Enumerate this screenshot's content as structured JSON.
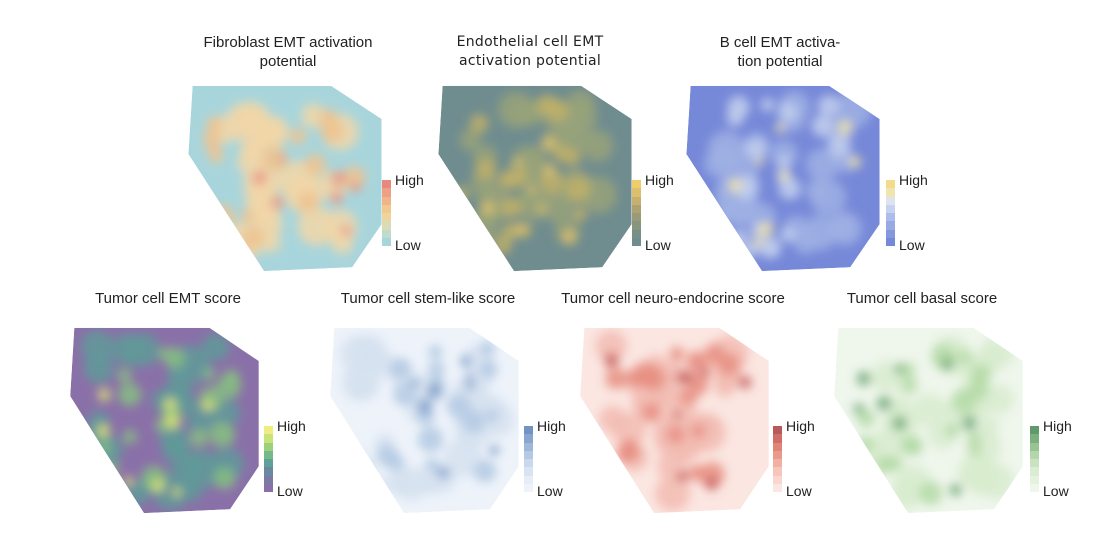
{
  "panels": [
    {
      "id": "fibroblast",
      "title": "Fibroblast EMT activation\npotential",
      "legend": {
        "high": "High",
        "low": "Low"
      },
      "colors": {
        "bg": "#a8d5dc",
        "spots": [
          "#f2d7a8",
          "#f0c38e",
          "#e89a8a"
        ],
        "ramp": [
          "#e8887f",
          "#ef9f86",
          "#f1b48a",
          "#f2c790",
          "#f0d49e",
          "#d9dcb5",
          "#bfdbc9",
          "#a8d5dc"
        ]
      }
    },
    {
      "id": "endothelial",
      "title": "Endothelial cell EMT\nactivation potential",
      "legend": {
        "high": "High",
        "low": "Low"
      },
      "colors": {
        "bg": "#6f8c8f",
        "spots": [
          "#98a27a",
          "#c1b069",
          "#e2c26c"
        ],
        "ramp": [
          "#f0cd6b",
          "#dcc06b",
          "#c6b06d",
          "#aea272",
          "#989a78",
          "#87947e",
          "#788f85",
          "#6f8c8f"
        ]
      }
    },
    {
      "id": "bcell",
      "title": "B cell EMT activa-\ntion potential",
      "legend": {
        "high": "High",
        "low": "Low"
      },
      "colors": {
        "bg": "#7688d8",
        "spots": [
          "#9fb0e4",
          "#c3d0ee",
          "#efe4a8"
        ],
        "ramp": [
          "#f2dc8a",
          "#f0e4b0",
          "#dde3ef",
          "#c6d2ef",
          "#adbcea",
          "#98a9e3",
          "#8597dd",
          "#7688d8"
        ]
      }
    },
    {
      "id": "tumor-emt",
      "title": "Tumor cell EMT score",
      "legend": {
        "high": "High",
        "low": "Low"
      },
      "colors": {
        "bg": "#8a70a8",
        "spots": [
          "#5f9a99",
          "#86c081",
          "#dde575"
        ],
        "ramp": [
          "#eeee80",
          "#c9e27a",
          "#9ed07c",
          "#73b98a",
          "#5fa196",
          "#6a889f",
          "#7b7aa5",
          "#8a70a8"
        ]
      }
    },
    {
      "id": "tumor-stem",
      "title": "Tumor cell stem-like score",
      "legend": {
        "high": "High",
        "low": "Low"
      },
      "colors": {
        "bg": "#eef3fa",
        "spots": [
          "#d6e2f0",
          "#b3c9e3",
          "#7f9fc9"
        ],
        "ramp": [
          "#7393c2",
          "#88a6cf",
          "#9fb8da",
          "#b6c9e4",
          "#c9d8ec",
          "#d9e4f2",
          "#e6edf7",
          "#eef3fa"
        ]
      }
    },
    {
      "id": "tumor-neuro",
      "title": "Tumor cell neuro-endocrine score",
      "legend": {
        "high": "High",
        "low": "Low"
      },
      "colors": {
        "bg": "#fbe6e1",
        "spots": [
          "#f2bcb3",
          "#e88f83",
          "#c8605f"
        ],
        "ramp": [
          "#b85a5c",
          "#d06d68",
          "#e08478",
          "#ea9a8d",
          "#f1b0a4",
          "#f6c5bb",
          "#f9d7cf",
          "#fbe6e1"
        ]
      }
    },
    {
      "id": "tumor-basal",
      "title": "Tumor cell basal score",
      "legend": {
        "high": "High",
        "low": "Low"
      },
      "colors": {
        "bg": "#eff6ec",
        "spots": [
          "#d8eccf",
          "#b4dba7",
          "#6fa978"
        ],
        "ramp": [
          "#5f9a6a",
          "#7bb07e",
          "#98c493",
          "#b4d6ab",
          "#c9e2c0",
          "#daecd2",
          "#e6f2e0",
          "#eff6ec"
        ]
      }
    }
  ]
}
